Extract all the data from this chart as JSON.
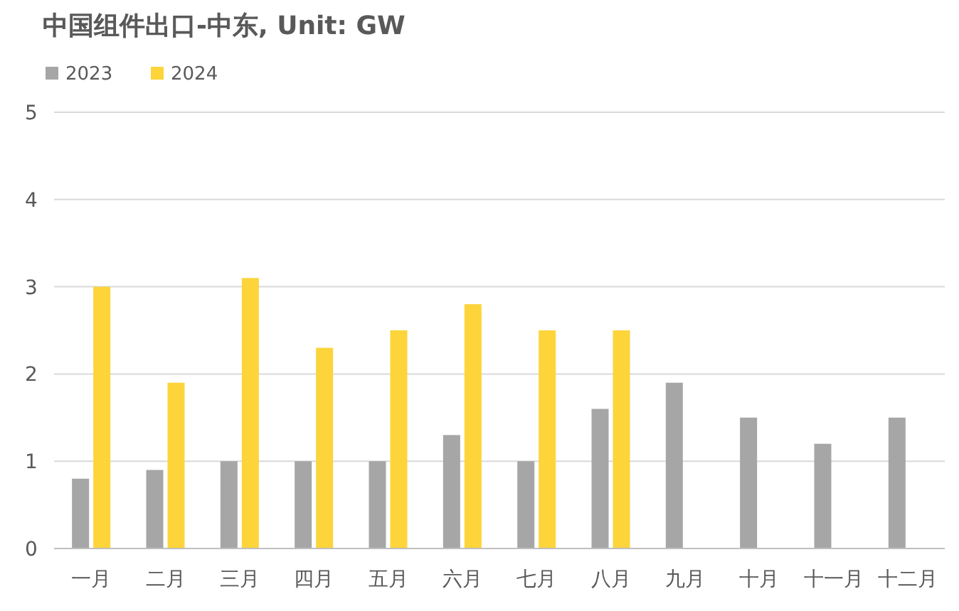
{
  "chart_data": {
    "type": "bar",
    "title": "中国组件出口-中东, Unit: GW",
    "categories": [
      "一月",
      "二月",
      "三月",
      "四月",
      "五月",
      "六月",
      "七月",
      "八月",
      "九月",
      "十月",
      "十一月",
      "十二月"
    ],
    "series": [
      {
        "name": "2023",
        "color": "#a6a6a6",
        "values": [
          0.8,
          0.9,
          1.0,
          1.0,
          1.0,
          1.3,
          1.0,
          1.6,
          1.9,
          1.5,
          1.2,
          1.5
        ]
      },
      {
        "name": "2024",
        "color": "#fdd43a",
        "values": [
          3.0,
          1.9,
          3.1,
          2.3,
          2.5,
          2.8,
          2.5,
          2.5,
          null,
          null,
          null,
          null
        ]
      }
    ],
    "ylim": [
      0,
      5
    ],
    "yticks": [
      0,
      1,
      2,
      3,
      4,
      5
    ],
    "grid": "y",
    "legend": "top left"
  }
}
